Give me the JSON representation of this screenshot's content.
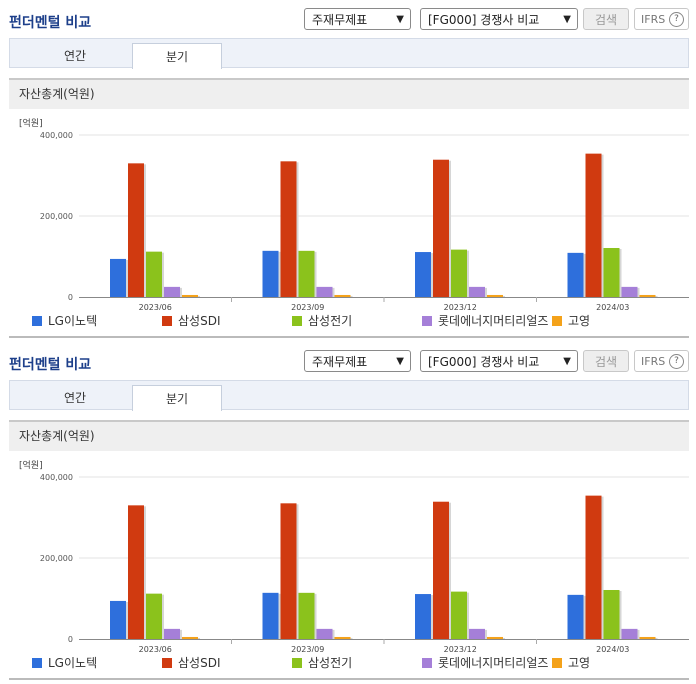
{
  "panels": [
    {
      "header": {
        "title": "펀더멘털 비교",
        "select_statement": "주재무제표",
        "select_compare": "[FG000] 경쟁사 비교",
        "search_label": "검색",
        "ifrs_label": "IFRS",
        "help_glyph": "?"
      },
      "tabs": [
        {
          "label": "연간",
          "active": false
        },
        {
          "label": "분기",
          "active": true
        }
      ],
      "section_title": "자산총계(억원)"
    },
    {
      "header": {
        "title": "펀더멘털 비교",
        "select_statement": "주재무제표",
        "select_compare": "[FG000] 경쟁사 비교",
        "search_label": "검색",
        "ifrs_label": "IFRS",
        "help_glyph": "?"
      },
      "tabs": [
        {
          "label": "연간",
          "active": false
        },
        {
          "label": "분기",
          "active": true
        }
      ],
      "section_title": "자산총계(억원)"
    }
  ],
  "chart_data": [
    {
      "type": "bar",
      "unit_label": "[억원]",
      "categories": [
        "2023/06",
        "2023/09",
        "2023/12",
        "2024/03"
      ],
      "ylim": [
        0,
        400000
      ],
      "yticks": [
        0,
        200000,
        400000
      ],
      "ytick_labels": [
        "0",
        "200,000",
        "400,000"
      ],
      "grid": true,
      "legend_position": "bottom",
      "series": [
        {
          "name": "LG이노텍",
          "color": "#2e6fdc",
          "values": [
            94000,
            114000,
            111000,
            109000
          ]
        },
        {
          "name": "삼성SDI",
          "color": "#d03a10",
          "values": [
            330000,
            335000,
            339000,
            354000
          ]
        },
        {
          "name": "삼성전기",
          "color": "#8bc21c",
          "values": [
            112000,
            114000,
            117000,
            121000
          ]
        },
        {
          "name": "롯데에너지머티리얼즈",
          "color": "#a57fd8",
          "values": [
            25000,
            25000,
            25000,
            25000
          ]
        },
        {
          "name": "고영",
          "color": "#f4a21a",
          "values": [
            5000,
            5000,
            5000,
            5000
          ]
        }
      ]
    },
    {
      "type": "bar",
      "unit_label": "[억원]",
      "categories": [
        "2023/06",
        "2023/09",
        "2023/12",
        "2024/03"
      ],
      "ylim": [
        0,
        400000
      ],
      "yticks": [
        0,
        200000,
        400000
      ],
      "ytick_labels": [
        "0",
        "200,000",
        "400,000"
      ],
      "grid": true,
      "legend_position": "bottom",
      "series": [
        {
          "name": "LG이노텍",
          "color": "#2e6fdc",
          "values": [
            94000,
            114000,
            111000,
            109000
          ]
        },
        {
          "name": "삼성SDI",
          "color": "#d03a10",
          "values": [
            330000,
            335000,
            339000,
            354000
          ]
        },
        {
          "name": "삼성전기",
          "color": "#8bc21c",
          "values": [
            112000,
            114000,
            117000,
            121000
          ]
        },
        {
          "name": "롯데에너지머티리얼즈",
          "color": "#a57fd8",
          "values": [
            25000,
            25000,
            25000,
            25000
          ]
        },
        {
          "name": "고영",
          "color": "#f4a21a",
          "values": [
            5000,
            5000,
            5000,
            5000
          ]
        }
      ]
    }
  ]
}
